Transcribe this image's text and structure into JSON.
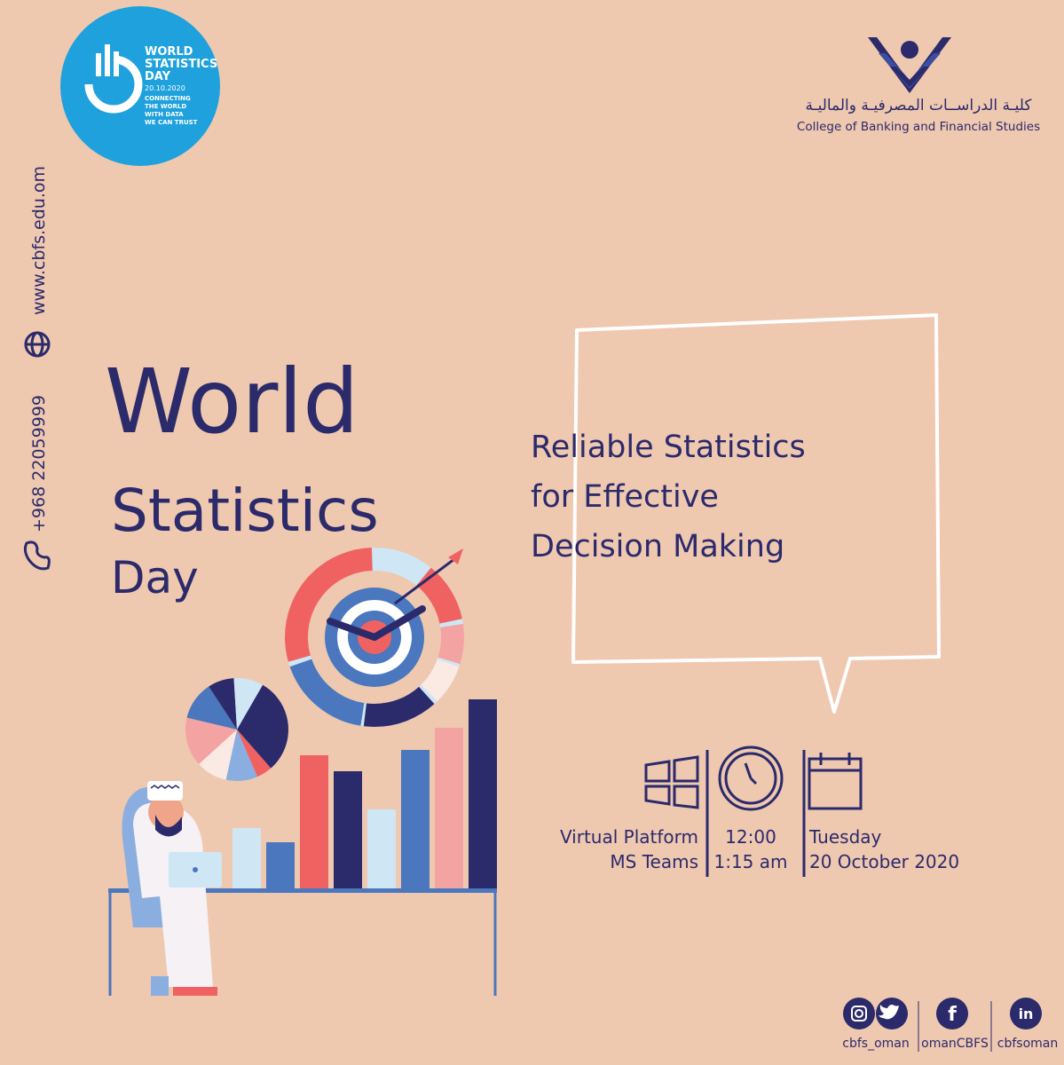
{
  "badge": {
    "lines": [
      "WORLD",
      "STATISTICS",
      "DAY"
    ],
    "date": "20.10.2020",
    "motto": [
      "CONNECTING",
      "THE WORLD",
      "WITH DATA",
      "WE CAN TRUST"
    ]
  },
  "college": {
    "arabic": "كليـة الدراســات المصرفيـة والماليـة",
    "english": "College of Banking and Financial Studies"
  },
  "contact": {
    "website": "www.cbfs.edu.om",
    "phone": "+968 22059999"
  },
  "title": [
    "World",
    "Statistics",
    "Day"
  ],
  "theme": [
    "Reliable Statistics",
    "for Effective",
    "Decision Making"
  ],
  "event": {
    "platform": [
      "Virtual Platform",
      "MS Teams"
    ],
    "time": [
      "12:00",
      "1:15 am"
    ],
    "date": [
      "Tuesday",
      "20 October 2020"
    ]
  },
  "social": {
    "icons": [
      "f",
      "in"
    ],
    "handles": [
      "cbfs_oman",
      "omanCBFS",
      "cbfsoman"
    ]
  }
}
